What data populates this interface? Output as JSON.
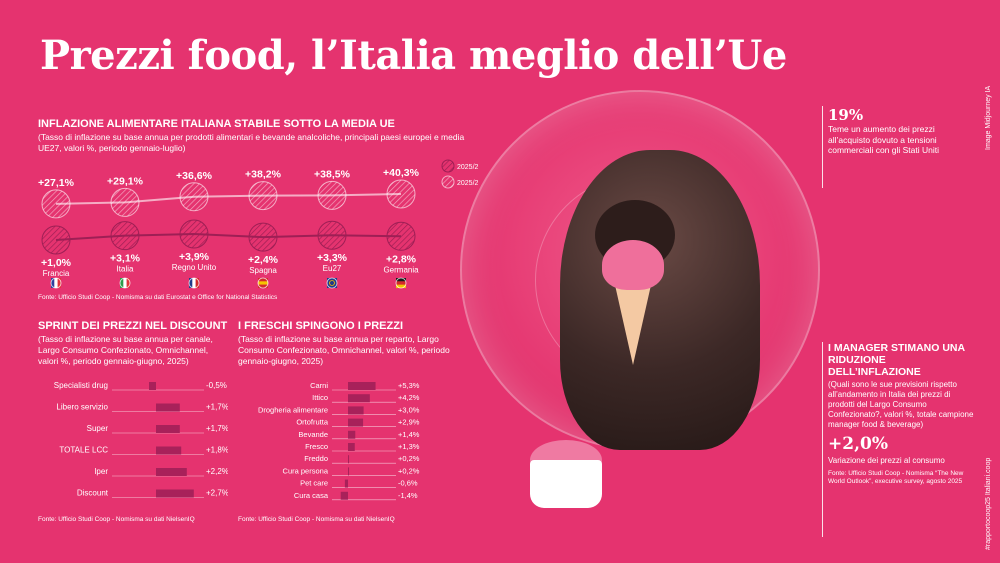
{
  "title": "Prezzi food, l’Italia meglio dell’Ue",
  "credit": "Image Midjourney IA",
  "hashtag": "#rapportocoop25 Italiani.coop",
  "colors": {
    "background": "#e5336f",
    "bar": "#a8215a",
    "line": "#9e1f55",
    "circle_fill": "#c92a60"
  },
  "section1": {
    "title": "INFLAZIONE ALIMENTARE ITALIANA STABILE SOTTO LA MEDIA UE",
    "subtitle": "(Tasso di inflazione su base annua per prodotti alimentari e bevande analcoliche, principali paesi europei e media UE27, valori %, periodo gennaio-luglio)",
    "source": "Fonte: Ufficio Studi Coop - Nomisma su dati Eurostat e Office for National Statistics",
    "legend_2025_2024": "2025/2024",
    "legend_2025_2019": "2025/2019",
    "flags": [
      "france-flag-icon",
      "italy-flag-icon",
      "uk-flag-icon",
      "spain-flag-icon",
      "eu-flag-icon",
      "germany-flag-icon"
    ]
  },
  "section2": {
    "title": "SPRINT DEI PREZZI NEL DISCOUNT",
    "subtitle": "(Tasso di inflazione su base annua per canale, Largo Consumo Confezionato, Omnichannel, valori %, periodo gennaio-giugno, 2025)",
    "source": "Fonte: Ufficio Studi Coop - Nomisma su dati NielsenIQ"
  },
  "section3": {
    "title": "I FRESCHI SPINGONO I PREZZI",
    "subtitle": "(Tasso di inflazione su base annua per reparto, Largo Consumo Confezionato, Omnichannel, valori %, periodo gennaio-giugno, 2025)",
    "source": "Fonte: Ufficio Studi Coop - Nomisma su dati NielsenIQ"
  },
  "right1": {
    "big": "19%",
    "text": "Teme un aumento dei prezzi all’acquisto dovuto a tensioni commerciali con gli Stati Uniti"
  },
  "right2": {
    "title": "I MANAGER STIMANO UNA RIDUZIONE DELL’INFLAZIONE",
    "text": "(Quali sono le sue previsioni rispetto all’andamento in Italia dei prezzi di prodotti del Largo Consumo Confezionato?, valori %, totale campione manager food & beverage)",
    "big": "+2,0%",
    "big_caption": "Variazione dei prezzi al consumo",
    "source": "Fonte: Ufficio Studi Coop - Nomisma “The New World Outlook”, executive survey, agosto 2025"
  },
  "chart_data": [
    {
      "type": "line",
      "categories": [
        "Francia",
        "Italia",
        "Regno Unito",
        "Spagna",
        "Eu27",
        "Germania"
      ],
      "series": [
        {
          "name": "2025/2019",
          "values": [
            27.1,
            29.1,
            36.6,
            38.2,
            38.5,
            40.3
          ],
          "labels": [
            "+27,1%",
            "+29,1%",
            "+36,6%",
            "+38,2%",
            "+38,5%",
            "+40,3%"
          ]
        },
        {
          "name": "2025/2024",
          "values": [
            1.0,
            3.1,
            3.9,
            2.4,
            3.3,
            2.8
          ],
          "labels": [
            "+1,0%",
            "+3,1%",
            "+3,9%",
            "+2,4%",
            "+3,3%",
            "+2,8%"
          ]
        }
      ],
      "title": "INFLAZIONE ALIMENTARE ITALIANA STABILE SOTTO LA MEDIA UE",
      "legend": "right"
    },
    {
      "type": "bar",
      "orientation": "horizontal",
      "categories": [
        "Specialisti drug",
        "Libero servizio",
        "Super",
        "TOTALE LCC",
        "Iper",
        "Discount"
      ],
      "values": [
        -0.5,
        1.7,
        1.7,
        1.8,
        2.2,
        2.7
      ],
      "labels": [
        "-0,5%",
        "+1,7%",
        "+1,7%",
        "+1,8%",
        "+2,2%",
        "+2,7%"
      ],
      "title": "SPRINT DEI PREZZI NEL DISCOUNT"
    },
    {
      "type": "bar",
      "orientation": "horizontal",
      "categories": [
        "Carni",
        "Ittico",
        "Drogheria alimentare",
        "Ortofrutta",
        "Bevande",
        "Fresco",
        "Freddo",
        "Cura persona",
        "Pet care",
        "Cura casa"
      ],
      "values": [
        5.3,
        4.2,
        3.0,
        2.9,
        1.4,
        1.3,
        0.2,
        0.2,
        -0.6,
        -1.4
      ],
      "labels": [
        "+5,3%",
        "+4,2%",
        "+3,0%",
        "+2,9%",
        "+1,4%",
        "+1,3%",
        "+0,2%",
        "+0,2%",
        "-0,6%",
        "-1,4%"
      ],
      "title": "I FRESCHI SPINGONO I PREZZI"
    }
  ]
}
